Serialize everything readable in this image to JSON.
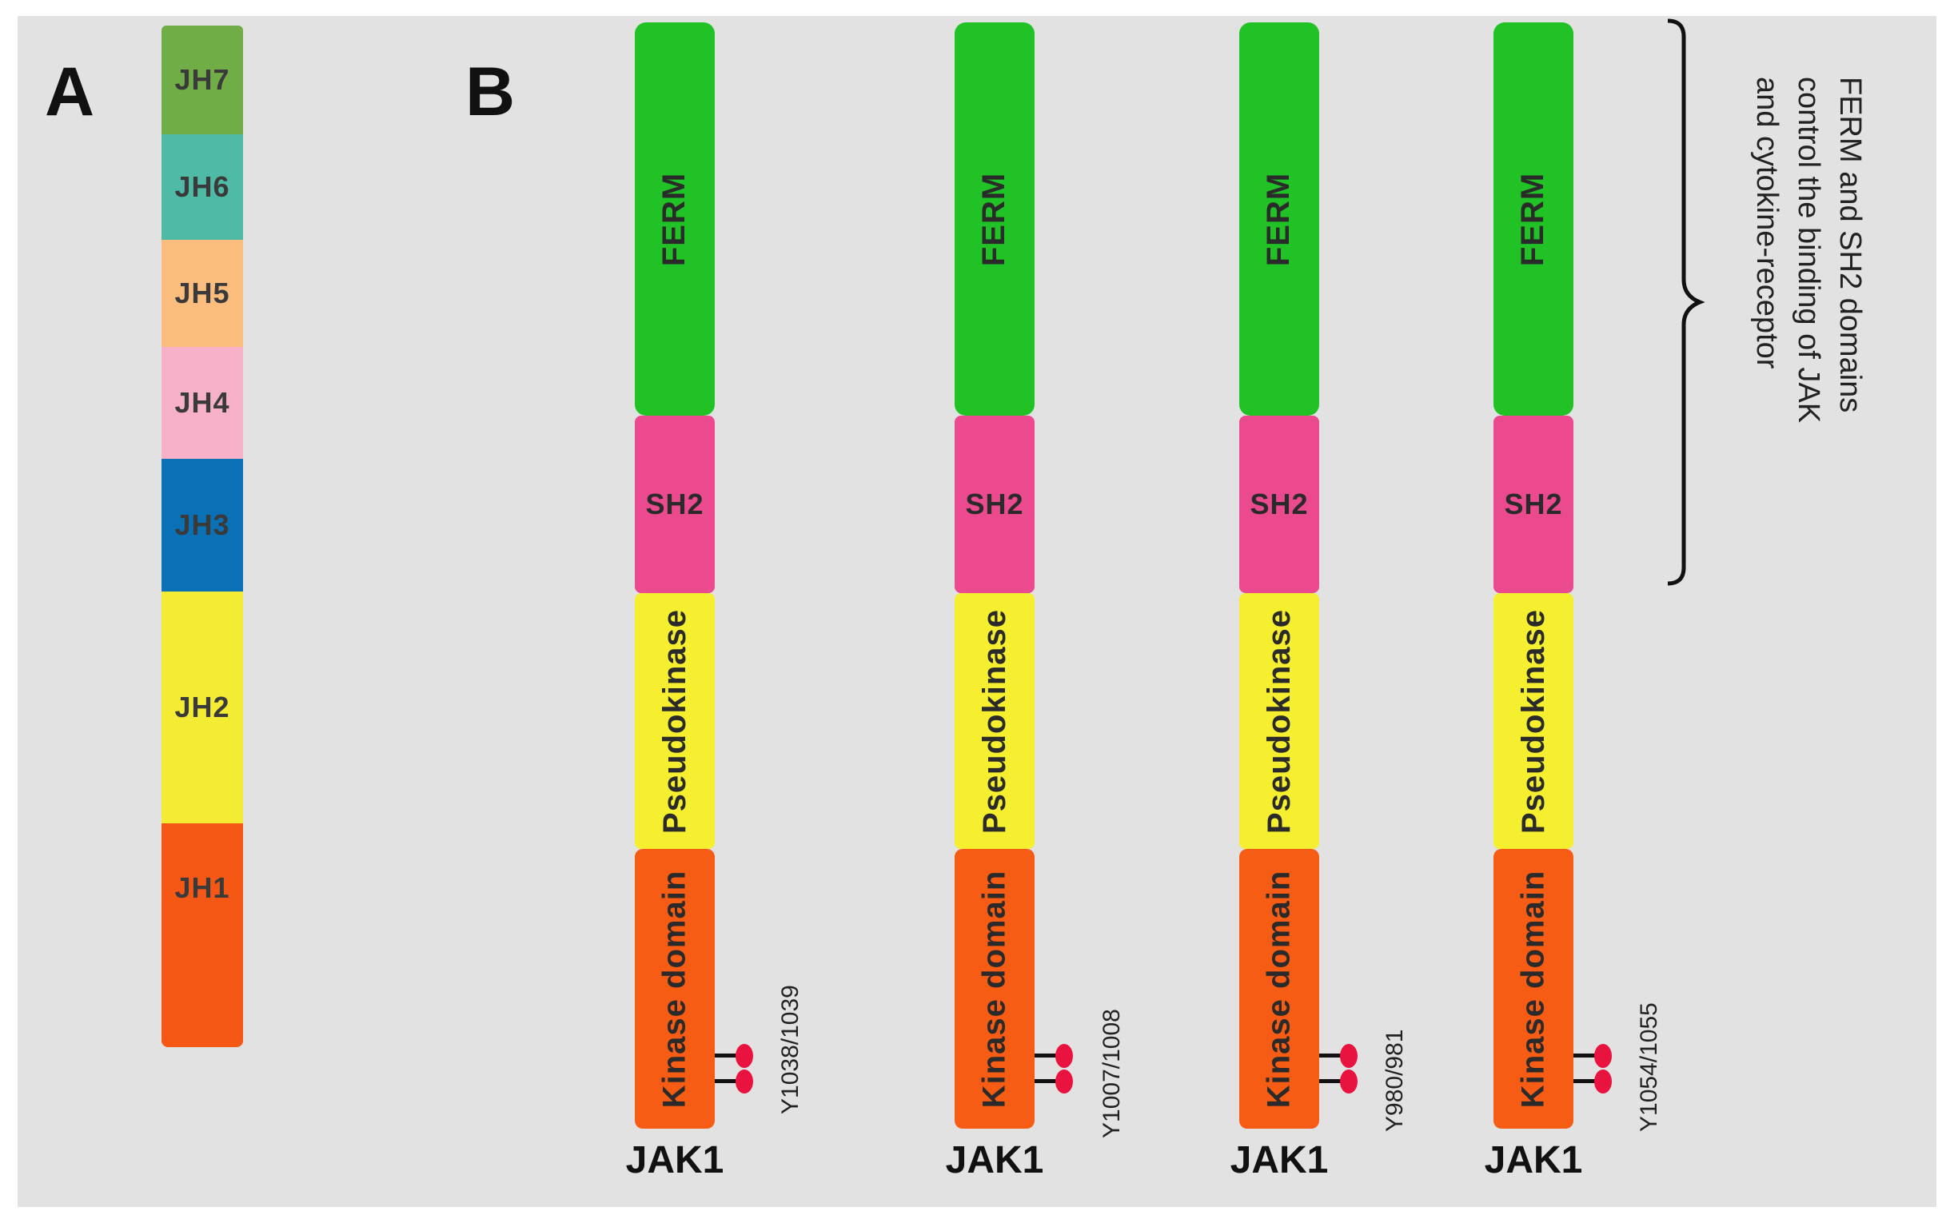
{
  "panels": {
    "a": "A",
    "b": "B"
  },
  "jh_blocks": [
    {
      "label": "JH7",
      "color": "#70ad47"
    },
    {
      "label": "JH6",
      "color": "#4fbaa6"
    },
    {
      "label": "JH5",
      "color": "#fbbd7e"
    },
    {
      "label": "JH4",
      "color": "#f6b1c8"
    },
    {
      "label": "JH3",
      "color": "#0a71b6"
    },
    {
      "label": "JH2",
      "color": "#f4ec34"
    },
    {
      "label": "JH1",
      "color": "#f55814"
    }
  ],
  "domains": {
    "ferm": {
      "label": "FERM",
      "color": "#20c225"
    },
    "sh2": {
      "label": "SH2",
      "color": "#ec4a8e"
    },
    "pseudokinase": {
      "label": "Pseudokinase",
      "color": "#f5ef2f"
    },
    "kinase": {
      "label": "Kinase domain",
      "color": "#f65c14"
    }
  },
  "proteins": [
    {
      "name": "JAK1",
      "site": "Y1038/1039"
    },
    {
      "name": "JAK1",
      "site": "Y1007/1008"
    },
    {
      "name": "JAK1",
      "site": "Y980/981"
    },
    {
      "name": "JAK1",
      "site": "Y1054/1055"
    }
  ],
  "annotation": {
    "lines": [
      "FERM and SH2 domains",
      "control the binding of JAK",
      "and cytokine-receptor"
    ]
  }
}
